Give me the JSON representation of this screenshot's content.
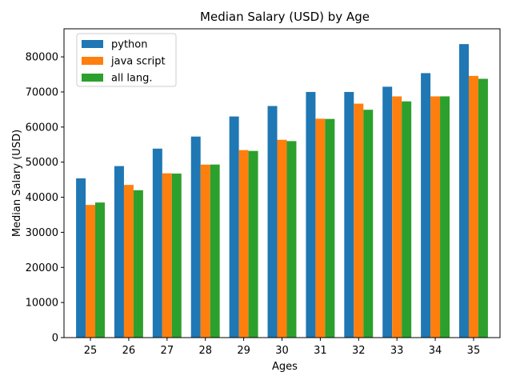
{
  "chart_data": {
    "type": "bar",
    "title": "Median Salary (USD) by Age",
    "xlabel": "Ages",
    "ylabel": "Median Salary (USD)",
    "categories": [
      "25",
      "26",
      "27",
      "28",
      "29",
      "30",
      "31",
      "32",
      "33",
      "34",
      "35"
    ],
    "ylim": [
      0,
      88000
    ],
    "yticks": [
      0,
      10000,
      20000,
      30000,
      40000,
      50000,
      60000,
      70000,
      80000
    ],
    "ytick_labels": [
      "0",
      "10000",
      "20000",
      "30000",
      "40000",
      "50000",
      "60000",
      "70000",
      "80000"
    ],
    "grid": false,
    "legend_position": "top-left",
    "series": [
      {
        "name": "python",
        "color": "#1f77b4",
        "values": [
          45372,
          48876,
          53850,
          57287,
          63016,
          65998,
          70003,
          70000,
          71496,
          75370,
          83640
        ]
      },
      {
        "name": "java script",
        "color": "#ff7f0e",
        "values": [
          37810,
          43515,
          46823,
          49293,
          53437,
          56373,
          62375,
          66674,
          68745,
          68746,
          74583
        ]
      },
      {
        "name": "all lang.",
        "color": "#2ca02c",
        "values": [
          38496,
          42000,
          46752,
          49320,
          53200,
          56000,
          62316,
          64928,
          67317,
          68748,
          73752
        ]
      }
    ]
  }
}
